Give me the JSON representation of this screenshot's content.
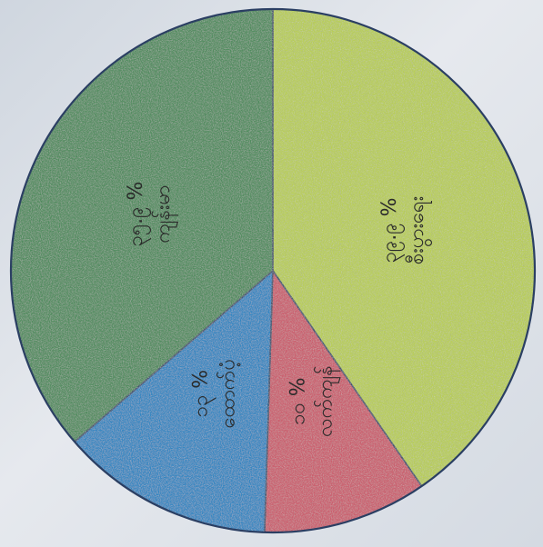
{
  "chart_data": {
    "type": "pie",
    "title": "",
    "rotation_deg": -90,
    "slices": [
      {
        "name": "စီးပွားရေး",
        "value_label": "၃၉.၉ %",
        "value": 39.9,
        "color": "#b9cf55"
      },
      {
        "name": "လက်ကျန်",
        "value_label": "၁၀ %",
        "value": 10,
        "color": "#cc5c6c"
      },
      {
        "name": "ထောက်ပံ့",
        "value_label": "၁၃ %",
        "value": 13,
        "color": "#2f86c2"
      },
      {
        "name": "ကျန်းမာ",
        "value_label": "၃၅.၉ %",
        "value": 35.9,
        "color": "#4f8c5d"
      }
    ]
  }
}
